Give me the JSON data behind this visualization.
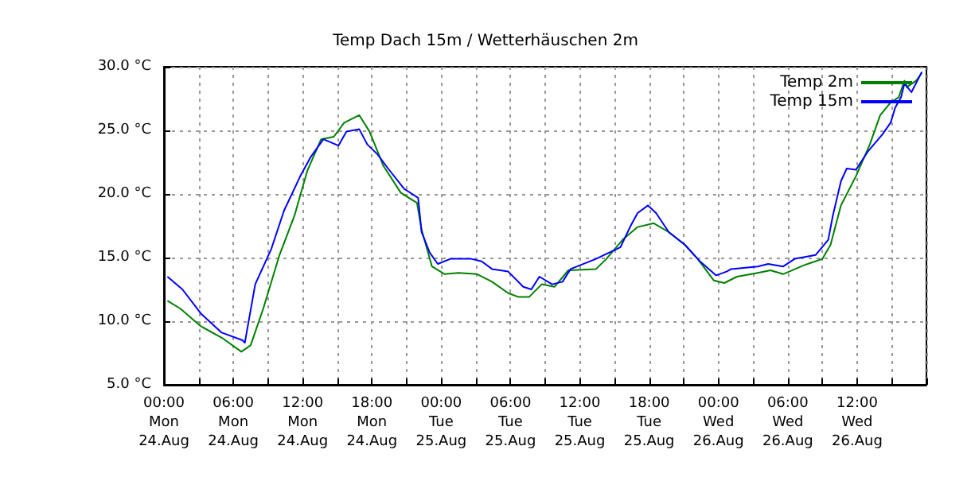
{
  "chart_data": {
    "type": "line",
    "title": "Temp Dach 15m / Wetterhäuschen 2m",
    "xlim": [
      "--08-24T00:00",
      "--08-26T18:00"
    ],
    "xticks": [
      {
        "value": "--08-24T00:00",
        "label": "00:00\nMon\n24.Aug"
      },
      {
        "value": "--08-24T03:00",
        "label": null
      },
      {
        "value": "--08-24T06:00",
        "label": "06:00\nMon\n24.Aug"
      },
      {
        "value": "--08-24T09:00",
        "label": null
      },
      {
        "value": "--08-24T12:00",
        "label": "12:00\nMon\n24.Aug"
      },
      {
        "value": "--08-24T15:00",
        "label": null
      },
      {
        "value": "--08-24T18:00",
        "label": "18:00\nMon\n24.Aug"
      },
      {
        "value": "--08-24T21:00",
        "label": null
      },
      {
        "value": "--08-25T00:00",
        "label": "00:00\nTue\n25.Aug"
      },
      {
        "value": "--08-25T03:00",
        "label": null
      },
      {
        "value": "--08-25T06:00",
        "label": "06:00\nTue\n25.Aug"
      },
      {
        "value": "--08-25T09:00",
        "label": null
      },
      {
        "value": "--08-25T12:00",
        "label": "12:00\nTue\n25.Aug"
      },
      {
        "value": "--08-25T15:00",
        "label": null
      },
      {
        "value": "--08-25T18:00",
        "label": "18:00\nTue\n25.Aug"
      },
      {
        "value": "--08-25T21:00",
        "label": null
      },
      {
        "value": "--08-26T00:00",
        "label": "00:00\nWed\n26.Aug"
      },
      {
        "value": "--08-26T03:00",
        "label": null
      },
      {
        "value": "--08-26T06:00",
        "label": "06:00\nWed\n26.Aug"
      },
      {
        "value": "--08-26T09:00",
        "label": null
      },
      {
        "value": "--08-26T12:00",
        "label": "12:00\nWed\n26.Aug"
      },
      {
        "value": "--08-26T15:00",
        "label": null
      }
    ],
    "ylim": [
      5,
      30
    ],
    "yticks": [
      {
        "value": 5,
        "label": "5.0 °C"
      },
      {
        "value": 10,
        "label": "10.0 °C"
      },
      {
        "value": 15,
        "label": "15.0 °C"
      },
      {
        "value": 20,
        "label": "20.0 °C"
      },
      {
        "value": 25,
        "label": "25.0 °C"
      },
      {
        "value": 30,
        "label": "30.0 °C"
      }
    ],
    "grid": true,
    "legend": "top right",
    "marker": "none",
    "line_style": "solid",
    "series": [
      {
        "name": "Temp 2m",
        "color": "#008000",
        "x": [
          "--08-24T00:18",
          "--08-24T01:24",
          "--08-24T03:12",
          "--08-24T05:00",
          "--08-24T06:42",
          "--08-24T07:30",
          "--08-24T08:36",
          "--08-24T10:00",
          "--08-24T11:18",
          "--08-24T12:24",
          "--08-24T13:36",
          "--08-24T14:42",
          "--08-24T15:36",
          "--08-24T16:54",
          "--08-24T17:48",
          "--08-24T19:00",
          "--08-24T20:30",
          "--08-24T21:54",
          "--08-24T22:18",
          "--08-24T23:12",
          "--08-25T00:18",
          "--08-25T01:30",
          "--08-25T03:06",
          "--08-25T04:24",
          "--08-25T05:48",
          "--08-25T06:42",
          "--08-25T07:36",
          "--08-25T08:42",
          "--08-25T09:48",
          "--08-25T11:00",
          "--08-25T13:24",
          "--08-25T14:18",
          "--08-25T15:42",
          "--08-25T17:00",
          "--08-25T18:24",
          "--08-25T19:42",
          "--08-25T21:06",
          "--08-25T22:12",
          "--08-25T23:36",
          "--08-26T00:30",
          "--08-26T01:36",
          "--08-26T03:24",
          "--08-26T04:30",
          "--08-26T05:36",
          "--08-26T07:24",
          "--08-26T09:00",
          "--08-26T09:42",
          "--08-26T10:36",
          "--08-26T11:54",
          "--08-26T13:06",
          "--08-26T14:00",
          "--08-26T14:54",
          "--08-26T15:36",
          "--08-26T16:06",
          "--08-26T16:18",
          "--08-26T17:06",
          "--08-26T17:36"
        ],
        "values": [
          11.6,
          11,
          9.6,
          8.7,
          7.6,
          8.1,
          11,
          15.2,
          18.3,
          21.8,
          24.3,
          24.5,
          25.6,
          26.2,
          24.9,
          22.2,
          20.1,
          19.3,
          17.2,
          14.3,
          13.7,
          13.8,
          13.7,
          13.1,
          12.2,
          11.9,
          11.9,
          12.9,
          12.7,
          14,
          14.1,
          14.9,
          16.4,
          17.4,
          17.7,
          17,
          16,
          14.9,
          13.2,
          13,
          13.5,
          13.8,
          14,
          13.7,
          14.4,
          14.9,
          16,
          19.1,
          21.4,
          23.9,
          26.2,
          27.2,
          27.6,
          28.9,
          28.4,
          28.9,
          29.5
        ]
      },
      {
        "name": "Temp 15m",
        "color": "#0000ff",
        "x": [
          "--08-24T00:18",
          "--08-24T01:36",
          "--08-24T03:12",
          "--08-24T05:00",
          "--08-24T06:48",
          "--08-24T07:00",
          "--08-24T07:54",
          "--08-24T09:18",
          "--08-24T10:24",
          "--08-24T11:48",
          "--08-24T12:42",
          "--08-24T13:48",
          "--08-24T15:06",
          "--08-24T15:48",
          "--08-24T16:54",
          "--08-24T17:36",
          "--08-24T18:30",
          "--08-24T19:24",
          "--08-24T20:48",
          "--08-24T22:00",
          "--08-24T22:18",
          "--08-24T23:00",
          "--08-24T23:42",
          "--08-25T00:48",
          "--08-25T02:36",
          "--08-25T03:30",
          "--08-25T04:24",
          "--08-25T05:48",
          "--08-25T07:06",
          "--08-25T07:48",
          "--08-25T08:30",
          "--08-25T09:36",
          "--08-25T10:30",
          "--08-25T11:12",
          "--08-25T13:24",
          "--08-25T15:30",
          "--08-25T16:24",
          "--08-25T17:00",
          "--08-25T17:54",
          "--08-25T18:36",
          "--08-25T19:42",
          "--08-25T21:06",
          "--08-25T22:24",
          "--08-25T23:48",
          "--08-26T00:42",
          "--08-26T01:06",
          "--08-26T03:24",
          "--08-26T04:18",
          "--08-26T05:36",
          "--08-26T06:36",
          "--08-26T08:24",
          "--08-26T09:30",
          "--08-26T09:54",
          "--08-26T10:36",
          "--08-26T11:06",
          "--08-26T11:54",
          "--08-26T12:54",
          "--08-26T14:12",
          "--08-26T14:54",
          "--08-26T15:18",
          "--08-26T15:48",
          "--08-26T16:06",
          "--08-26T16:42",
          "--08-26T17:06",
          "--08-26T17:36"
        ],
        "values": [
          13.5,
          12.5,
          10.6,
          9.1,
          8.5,
          8.3,
          12.9,
          15.7,
          18.7,
          21.4,
          22.9,
          24.3,
          23.8,
          24.9,
          25.1,
          23.9,
          23.1,
          22,
          20.4,
          19.7,
          17,
          15.4,
          14.5,
          14.9,
          14.9,
          14.7,
          14.1,
          13.9,
          12.7,
          12.5,
          13.5,
          12.9,
          13.1,
          14.1,
          14.9,
          15.8,
          17.5,
          18.5,
          19.1,
          18.5,
          17,
          16,
          14.7,
          13.6,
          13.9,
          14.1,
          14.3,
          14.5,
          14.3,
          14.9,
          15.2,
          16.4,
          18.3,
          21,
          22,
          21.9,
          23.3,
          24.7,
          25.6,
          26.8,
          27.6,
          28.7,
          28,
          28.7,
          29.6
        ]
      }
    ]
  }
}
